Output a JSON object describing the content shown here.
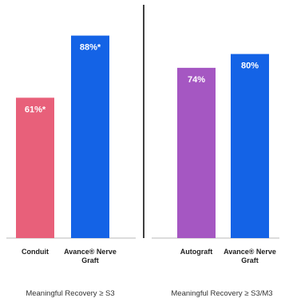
{
  "chart_data": {
    "type": "bar",
    "ylim": [
      0,
      100
    ],
    "grid": false,
    "legend": "none",
    "groups": [
      {
        "label": "Meaningful Recovery ≥ S3",
        "bars": [
          {
            "category": [
              "Conduit"
            ],
            "value": 61,
            "value_label": "61%*",
            "color": "#e8607a"
          },
          {
            "category": [
              "Avance® Nerve",
              "Graft"
            ],
            "value": 88,
            "value_label": "88%*",
            "color": "#1463e6"
          }
        ]
      },
      {
        "label": "Meaningful Recovery ≥ S3/M3",
        "bars": [
          {
            "category": [
              "Autograft"
            ],
            "value": 74,
            "value_label": "74%",
            "color": "#a557c2"
          },
          {
            "category": [
              "Avance® Nerve",
              "Graft"
            ],
            "value": 80,
            "value_label": "80%",
            "color": "#1463e6"
          }
        ]
      }
    ]
  }
}
